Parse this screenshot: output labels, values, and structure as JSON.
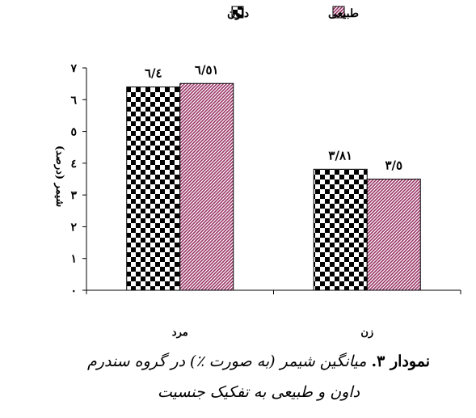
{
  "chart_data": {
    "type": "bar",
    "categories": [
      "مرد",
      "زن"
    ],
    "series": [
      {
        "name": "داون",
        "values": [
          6.4,
          3.81
        ],
        "labels": [
          "٦/٤",
          "٣/٨١"
        ],
        "pattern": "checker",
        "color": "#000000"
      },
      {
        "name": "طبیعی",
        "values": [
          6.51,
          3.5
        ],
        "labels": [
          "٦/٥١",
          "٣/٥"
        ],
        "pattern": "diagonal",
        "color": "#993366"
      }
    ],
    "ylim": [
      0,
      7
    ],
    "yticks": [
      "٠",
      "١",
      "٢",
      "٣",
      "٤",
      "٥",
      "٦",
      "٧"
    ],
    "ylabel": "شیمر (درصد)",
    "xlabel": "",
    "legend_position": "top",
    "grid": false
  },
  "caption": {
    "lead": "نمودار ٣.",
    "body": "میانگین شیمر (به صورت ٪) در گروه سندرم داون و طبیعی به تفکیک جنسیت"
  }
}
